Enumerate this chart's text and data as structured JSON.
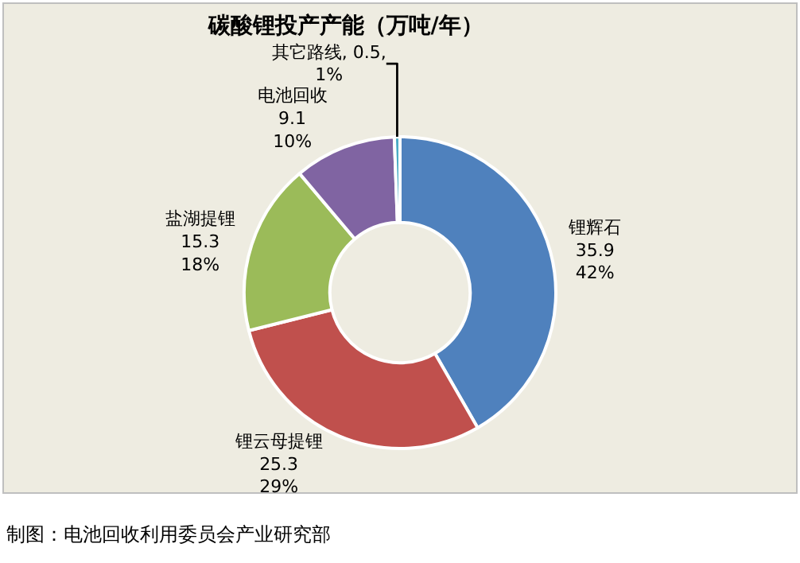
{
  "chart_data": {
    "type": "donut",
    "title": "碳酸锂投产产能（万吨/年）",
    "categories": [
      "锂辉石",
      "锂云母提锂",
      "盐湖提锂",
      "电池回收",
      "其它路线"
    ],
    "values": [
      35.9,
      25.3,
      15.3,
      9.1,
      0.5
    ],
    "colors": [
      "#4f81bd",
      "#c0504d",
      "#9bbb59",
      "#8064a2",
      "#4bacc6"
    ],
    "value_labels": [
      "\n35.9\n42%",
      "\n25.3\n29%",
      "\n15.3\n18%",
      "\n9.1\n10%",
      ", 0.5,\n1%"
    ],
    "legend": false,
    "annotations": [
      "制图：电池回收利用委员会产业研究部"
    ]
  }
}
